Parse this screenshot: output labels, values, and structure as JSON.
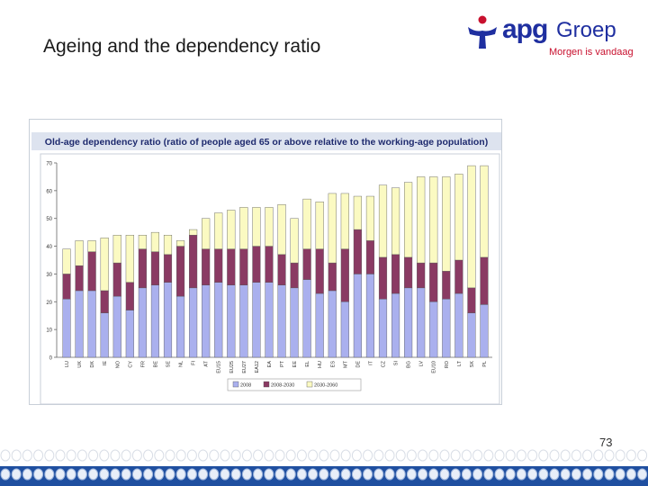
{
  "slide": {
    "title": "Ageing and the dependency ratio",
    "page_number": "73"
  },
  "logo": {
    "word": "apg",
    "groep": "Groep",
    "tagline": "Morgen is vandaag",
    "mark_icon": "apg-figure-logo-icon"
  },
  "colors": {
    "brand_blue": "#1f2fa0",
    "brand_red": "#c8102e",
    "chart_header_bg": "#dde3ef",
    "chart_title_text": "#1e2a6e",
    "series_2008": "#aab0ee",
    "series_2008_2030": "#8a3a63",
    "series_2030_2060": "#fbfac2",
    "footer_circle_light": "#d9dee6",
    "footer_circle_blue": "#1f4fa0"
  },
  "chart_data": {
    "type": "bar",
    "stacked": true,
    "title": "Old-age dependency ratio (ratio of people aged 65 or above relative to the working-age population)",
    "ylim": [
      0,
      70
    ],
    "yticks": [
      0,
      10,
      20,
      30,
      40,
      50,
      60,
      70
    ],
    "grid": false,
    "legend_position": "bottom-center",
    "categories": [
      "LU",
      "UK",
      "DK",
      "IE",
      "NO",
      "CY",
      "FR",
      "BE",
      "SE",
      "NL",
      "FI",
      "AT",
      "EU15",
      "EU25",
      "EU27",
      "EA12",
      "EA",
      "PT",
      "EE",
      "EL",
      "HU",
      "ES",
      "MT",
      "DE",
      "IT",
      "CZ",
      "SI",
      "BG",
      "LV",
      "EU10",
      "RO",
      "LT",
      "SK",
      "PL"
    ],
    "series": [
      {
        "name": "2008",
        "values": [
          21,
          24,
          24,
          16,
          22,
          17,
          25,
          26,
          27,
          22,
          25,
          26,
          27,
          26,
          26,
          27,
          27,
          26,
          25,
          28,
          23,
          24,
          20,
          30,
          30,
          21,
          23,
          25,
          25,
          20,
          21,
          23,
          16,
          19
        ]
      },
      {
        "name": "2008-2030",
        "values": [
          9,
          9,
          14,
          8,
          12,
          10,
          14,
          12,
          10,
          18,
          19,
          13,
          12,
          13,
          13,
          13,
          13,
          11,
          9,
          11,
          16,
          10,
          19,
          16,
          12,
          15,
          14,
          11,
          9,
          14,
          10,
          12,
          9,
          17
        ]
      },
      {
        "name": "2030-2060",
        "values": [
          9,
          9,
          4,
          19,
          10,
          17,
          5,
          7,
          7,
          2,
          2,
          11,
          13,
          14,
          15,
          14,
          14,
          18,
          16,
          18,
          17,
          25,
          20,
          12,
          16,
          26,
          24,
          27,
          31,
          31,
          34,
          31,
          44,
          33
        ]
      }
    ],
    "legend": [
      "2008",
      "2008-2030",
      "2030-2060"
    ]
  }
}
